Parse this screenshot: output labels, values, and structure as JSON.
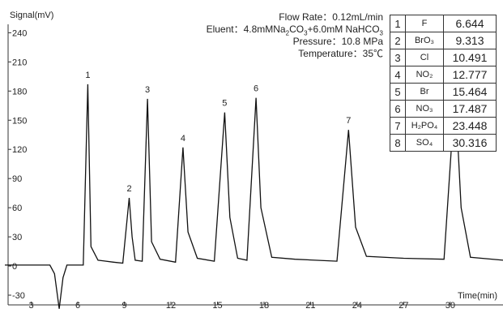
{
  "chart_data": {
    "type": "line",
    "ylabel": "Signal(mV)",
    "xlabel": "Time(min)",
    "x_ticks": [
      3,
      6,
      9,
      12,
      15,
      18,
      21,
      24,
      27,
      30
    ],
    "y_ticks": [
      -30,
      0,
      30,
      60,
      90,
      120,
      150,
      180,
      210,
      240
    ],
    "xlim": [
      1.3,
      33.4
    ],
    "ylim": [
      -45,
      262
    ],
    "conditions": {
      "flow_rate": "Flow Rate：0.12mL/min",
      "eluent_prefix": "Eluent：4.8mMNa",
      "eluent_sub1": "2",
      "eluent_mid": "CO",
      "eluent_sub2": "3",
      "eluent_mid2": "+6.0mM NaHCO",
      "eluent_sub3": "3",
      "pressure": "Pressure：10.8 MPa",
      "temperature": "Temperature：35℃"
    },
    "peaks": [
      {
        "label": "1",
        "ion": "F",
        "time": "6.644",
        "t": 6.644,
        "height": 187
      },
      {
        "label": "2",
        "ion": "BrO₃",
        "time": "9.313",
        "t": 9.313,
        "height": 70
      },
      {
        "label": "3",
        "ion": "Cl",
        "time": "10.491",
        "t": 10.491,
        "height": 172
      },
      {
        "label": "4",
        "ion": "NO₂",
        "time": "12.777",
        "t": 12.777,
        "height": 122
      },
      {
        "label": "5",
        "ion": "Br",
        "time": "15.464",
        "t": 15.464,
        "height": 158
      },
      {
        "label": "6",
        "ion": "NO₃",
        "time": "17.487",
        "t": 17.487,
        "height": 173
      },
      {
        "label": "7",
        "ion": "H₂PO₄",
        "time": "23.448",
        "t": 23.448,
        "height": 140
      },
      {
        "label": "8",
        "ion": "SO₄",
        "time": "30.316",
        "t": 30.316,
        "height": 180
      }
    ],
    "trace": [
      [
        1.3,
        1
      ],
      [
        4.2,
        1
      ],
      [
        4.5,
        -8
      ],
      [
        4.8,
        -44
      ],
      [
        5.05,
        -12
      ],
      [
        5.3,
        1
      ],
      [
        6.35,
        1
      ],
      [
        6.644,
        187
      ],
      [
        6.85,
        20
      ],
      [
        7.3,
        6
      ],
      [
        8.3,
        4
      ],
      [
        8.9,
        3
      ],
      [
        9.313,
        70
      ],
      [
        9.5,
        30
      ],
      [
        9.7,
        6
      ],
      [
        10.15,
        5
      ],
      [
        10.491,
        172
      ],
      [
        10.75,
        25
      ],
      [
        11.3,
        7
      ],
      [
        12.3,
        4
      ],
      [
        12.777,
        122
      ],
      [
        13.1,
        35
      ],
      [
        13.7,
        8
      ],
      [
        14.8,
        5
      ],
      [
        15.464,
        158
      ],
      [
        15.8,
        50
      ],
      [
        16.3,
        8
      ],
      [
        16.9,
        6
      ],
      [
        17.487,
        173
      ],
      [
        17.8,
        60
      ],
      [
        18.5,
        9
      ],
      [
        20,
        7
      ],
      [
        22.7,
        5
      ],
      [
        23.448,
        140
      ],
      [
        23.9,
        40
      ],
      [
        24.6,
        10
      ],
      [
        27,
        8
      ],
      [
        29.6,
        7
      ],
      [
        30.316,
        180
      ],
      [
        30.7,
        60
      ],
      [
        31.3,
        9
      ],
      [
        33.4,
        6
      ]
    ]
  }
}
